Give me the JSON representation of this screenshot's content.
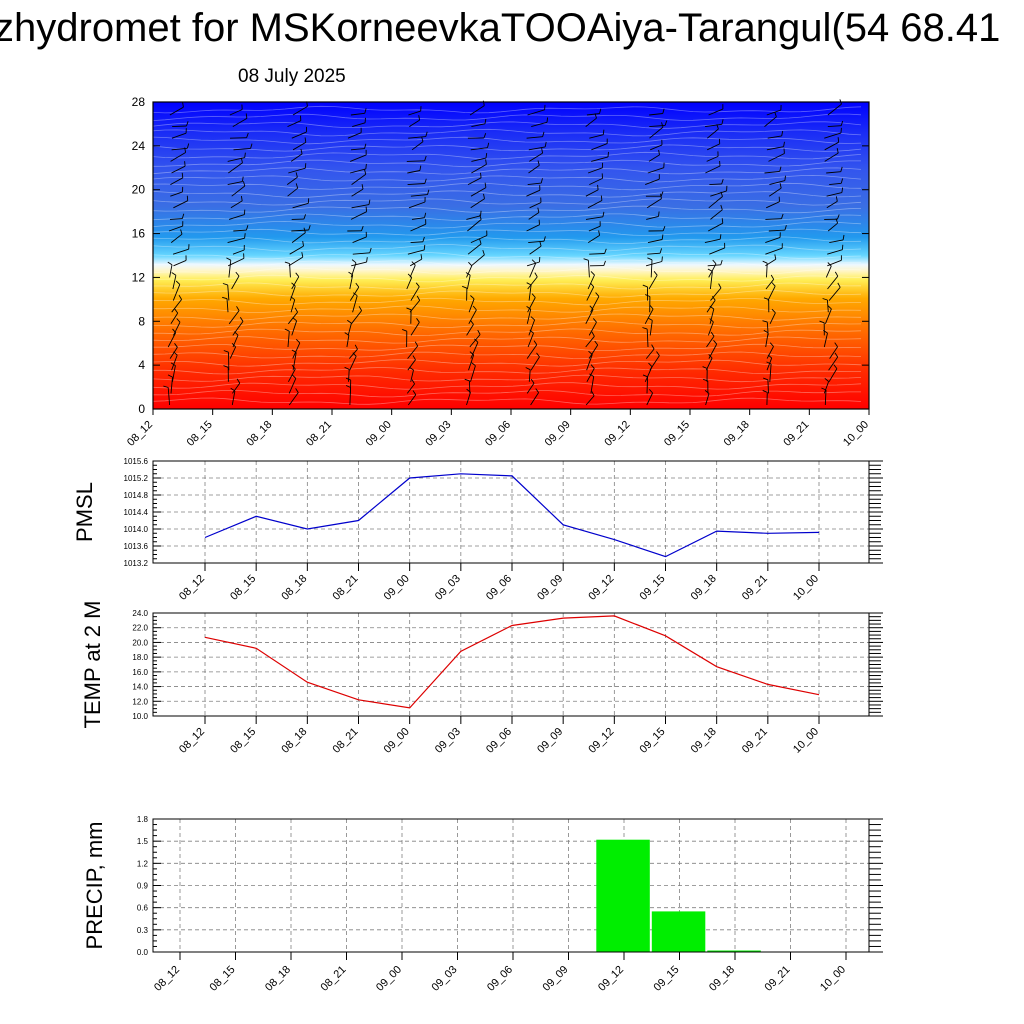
{
  "header": {
    "title": "zhydromet for MSKorneevkaTOOAiya-Tarangul(54 68.41",
    "date": "08 July 2025"
  },
  "colors": {
    "pmsl_line": "#0000cc",
    "temp_line": "#dd0000",
    "precip_bar": "#00ee00",
    "grid": "#808080",
    "barbs": "#000000"
  },
  "chart_data": [
    {
      "type": "heatmap",
      "name": "cross-section",
      "x": [
        "08_12",
        "08_15",
        "08_18",
        "08_21",
        "09_00",
        "09_03",
        "09_06",
        "09_09",
        "09_12",
        "09_15",
        "09_18",
        "09_21",
        "10_00"
      ],
      "yticks": [
        0,
        4,
        8,
        12,
        16,
        20,
        24,
        28
      ],
      "ylim": [
        0,
        28
      ],
      "overlay": "wind barbs",
      "colormap": [
        "#ff0000",
        "#ff6600",
        "#ffaa00",
        "#ffee55",
        "#ffffff",
        "#22ccff",
        "#3355ee",
        "#0000ff"
      ]
    },
    {
      "type": "line",
      "ylabel": "PMSL",
      "x": [
        "08_12",
        "08_15",
        "08_18",
        "08_21",
        "09_00",
        "09_03",
        "09_06",
        "09_09",
        "09_12",
        "09_15",
        "09_18",
        "09_21",
        "10_00"
      ],
      "values": [
        1013.8,
        1014.3,
        1014.0,
        1014.2,
        1015.2,
        1015.3,
        1015.25,
        1014.1,
        1013.75,
        1013.35,
        1013.95,
        1013.9,
        1013.92
      ],
      "ylim": [
        1013.2,
        1015.6
      ],
      "yticks": [
        "1013.2",
        "1013.6",
        "1014.0",
        "1014.4",
        "1014.8",
        "1015.2",
        "1015.6"
      ],
      "grid": true
    },
    {
      "type": "line",
      "ylabel": "TEMP at 2 M",
      "x": [
        "08_12",
        "08_15",
        "08_18",
        "08_21",
        "09_00",
        "09_03",
        "09_06",
        "09_09",
        "09_12",
        "09_15",
        "09_18",
        "09_21",
        "10_00"
      ],
      "values": [
        20.7,
        19.2,
        14.6,
        12.2,
        11.1,
        18.8,
        22.3,
        23.3,
        23.6,
        20.9,
        16.7,
        14.3,
        12.9
      ],
      "ylim": [
        10.0,
        24.0
      ],
      "yticks": [
        "10.0",
        "12.0",
        "14.0",
        "16.0",
        "18.0",
        "20.0",
        "22.0",
        "24.0"
      ],
      "grid": true
    },
    {
      "type": "bar",
      "ylabel": "PRECIP, mm",
      "x": [
        "08_12",
        "08_15",
        "08_18",
        "08_21",
        "09_00",
        "09_03",
        "09_06",
        "09_09",
        "09_12",
        "09_15",
        "09_18",
        "09_21",
        "10_00"
      ],
      "values": [
        0,
        0,
        0,
        0,
        0,
        0,
        0,
        0,
        1.52,
        0.55,
        0.02,
        0,
        0
      ],
      "ylim": [
        0,
        1.8
      ],
      "yticks": [
        "0.0",
        "0.3",
        "0.6",
        "0.9",
        "1.2",
        "1.5",
        "1.8"
      ],
      "grid": true
    }
  ]
}
